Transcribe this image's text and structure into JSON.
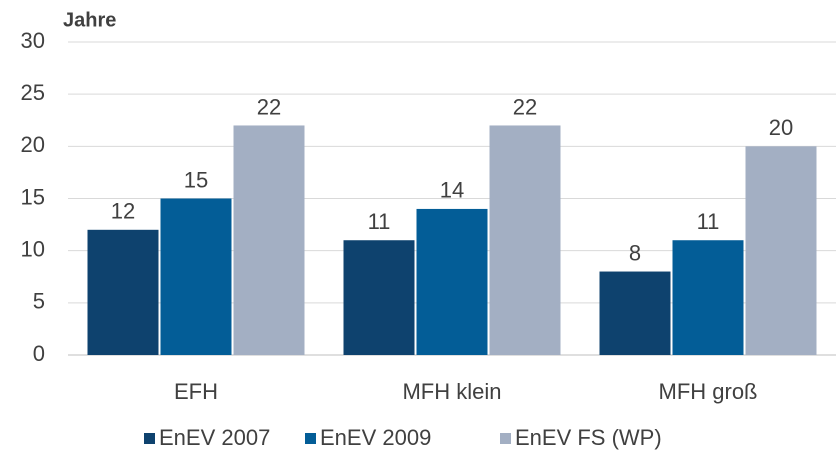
{
  "chart_data": {
    "type": "bar",
    "y_label": "Jahre",
    "categories": [
      "EFH",
      "MFH klein",
      "MFH groß"
    ],
    "series": [
      {
        "name": "EnEV 2007",
        "color": "#0e426e",
        "values": [
          12,
          11,
          8
        ]
      },
      {
        "name": "EnEV 2009",
        "color": "#035d97",
        "values": [
          15,
          14,
          11
        ]
      },
      {
        "name": "EnEV FS (WP)",
        "color": "#a3afc3",
        "values": [
          22,
          22,
          20
        ]
      }
    ],
    "ylim": [
      0,
      30
    ],
    "yticks": [
      0,
      5,
      10,
      15,
      20,
      25,
      30
    ],
    "grid": true,
    "legend": "bottom"
  }
}
